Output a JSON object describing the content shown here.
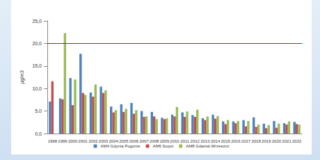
{
  "chart_data": {
    "type": "bar",
    "y_label": "µg/m3",
    "categories": [
      "1998",
      "1999",
      "2000",
      "2001",
      "2002",
      "2003",
      "2004",
      "2005",
      "2006",
      "2007",
      "2008",
      "2009",
      "2010",
      "2011",
      "2012",
      "2013",
      "2014",
      "2015",
      "2016",
      "2017",
      "2018",
      "2019",
      "2020",
      "2021",
      "2022"
    ],
    "series": [
      {
        "name": "AM4 Gdynia Pogórze",
        "color": "#4f81bd",
        "values": [
          7.1,
          7.8,
          12.3,
          17.7,
          9.1,
          10.4,
          6.0,
          6.5,
          6.8,
          5.0,
          4.8,
          3.5,
          4.2,
          4.7,
          4.1,
          3.4,
          4.2,
          2.7,
          2.7,
          3.0,
          3.6,
          2.2,
          2.8,
          2.3,
          2.6
        ]
      },
      {
        "name": "AM6 Sopot",
        "color": "#c0504d",
        "values": [
          11.6,
          7.6,
          6.3,
          9.0,
          8.2,
          9.0,
          4.7,
          4.8,
          4.4,
          3.7,
          3.8,
          3.2,
          3.8,
          3.7,
          3.7,
          3.0,
          3.3,
          2.1,
          2.3,
          1.6,
          1.5,
          1.2,
          1.3,
          2.0,
          2.1
        ]
      },
      {
        "name": "AM8 Gdańsk Wrzeszcz",
        "color": "#9bbb59",
        "values": [
          null,
          22.3,
          12.0,
          8.6,
          10.9,
          9.6,
          5.2,
          5.5,
          5.2,
          3.8,
          3.2,
          3.4,
          5.9,
          4.9,
          5.3,
          3.8,
          3.9,
          3.0,
          2.8,
          2.8,
          2.0,
          1.9,
          2.2,
          2.7,
          2.0
        ]
      }
    ],
    "reference_line": {
      "value": 20,
      "color": "#ff0000"
    },
    "ylim": [
      0,
      25
    ],
    "yticks": [
      {
        "value": 0,
        "label": "0,0"
      },
      {
        "value": 5,
        "label": "5,0"
      },
      {
        "value": 10,
        "label": "10,0"
      },
      {
        "value": 15,
        "label": "15,0"
      },
      {
        "value": 20,
        "label": "20,0"
      },
      {
        "value": 25,
        "label": "25,0"
      }
    ],
    "grid": false,
    "legend": "bottom"
  }
}
